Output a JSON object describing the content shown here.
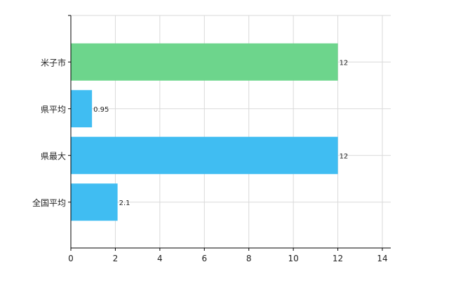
{
  "chart_data": {
    "type": "bar",
    "orientation": "horizontal",
    "categories": [
      "米子市",
      "県平均",
      "県最大",
      "全国平均"
    ],
    "values": [
      12,
      0.95,
      12,
      2.1
    ],
    "value_labels": [
      "12",
      "0.95",
      "12",
      "2.1"
    ],
    "bar_colors": [
      "#6dd58c",
      "#40bdf2",
      "#40bdf2",
      "#40bdf2"
    ],
    "xlim": [
      0,
      14
    ],
    "xticks": [
      0,
      2,
      4,
      6,
      8,
      10,
      12,
      14
    ],
    "xtick_labels": [
      "0",
      "2",
      "4",
      "6",
      "8",
      "10",
      "12",
      "14"
    ],
    "grid": true,
    "legend": false,
    "title": "",
    "xlabel": "",
    "ylabel": ""
  }
}
